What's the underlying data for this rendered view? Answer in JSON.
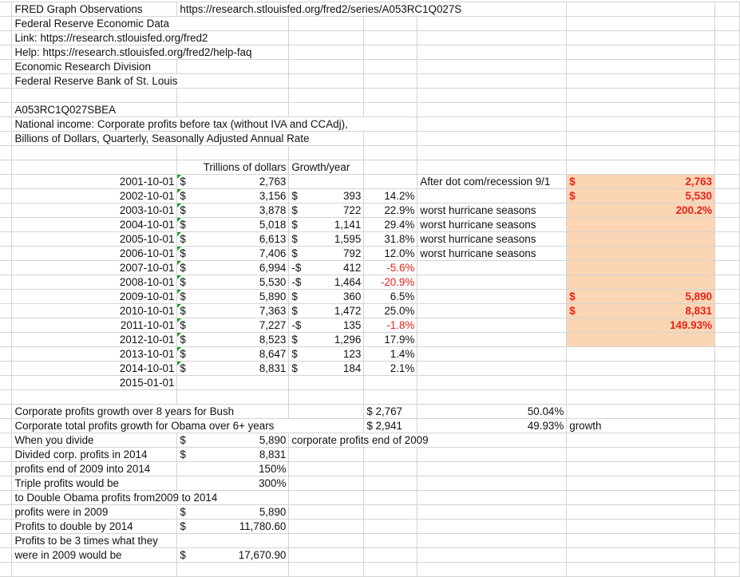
{
  "header": {
    "title": "FRED Graph Observations",
    "series_url": "https://research.stlouisfed.org/fred2/series/A053RC1Q027S",
    "source": "Federal Reserve Economic Data",
    "link": "Link: https://research.stlouisfed.org/fred2",
    "help": "Help: https://research.stlouisfed.org/fred2/help-faq",
    "division": "Economic Research Division",
    "bank": "Federal Reserve Bank of St. Louis",
    "series_id": "A053RC1Q027SBEA",
    "description": "National income: Corporate profits before tax (without IVA and CCAdj),",
    "units": "Billions of Dollars, Quarterly, Seasonally Adjusted Annual Rate"
  },
  "table": {
    "col_profit_header": "Trillions of dollars",
    "col_growth_header": "Growth/year",
    "currency": "$",
    "rows": [
      {
        "date": "2001-10-01",
        "profit": "2,763",
        "growth_sign": "",
        "growth": "",
        "pct": "",
        "note": "After dot com/recession 9/1"
      },
      {
        "date": "2002-10-01",
        "profit": "3,156",
        "growth_sign": "$",
        "growth": "393",
        "pct": "14.2%",
        "note": ""
      },
      {
        "date": "2003-10-01",
        "profit": "3,878",
        "growth_sign": "$",
        "growth": "722",
        "pct": "22.9%",
        "note": "worst hurricane seasons"
      },
      {
        "date": "2004-10-01",
        "profit": "5,018",
        "growth_sign": "$",
        "growth": "1,141",
        "pct": "29.4%",
        "note": "worst hurricane seasons"
      },
      {
        "date": "2005-10-01",
        "profit": "6,613",
        "growth_sign": "$",
        "growth": "1,595",
        "pct": "31.8%",
        "note": "worst hurricane seasons"
      },
      {
        "date": "2006-10-01",
        "profit": "7,406",
        "growth_sign": "$",
        "growth": "792",
        "pct": "12.0%",
        "note": "worst hurricane seasons"
      },
      {
        "date": "2007-10-01",
        "profit": "6,994",
        "growth_sign": "-$",
        "growth": "412",
        "pct": "-5.6%",
        "note": ""
      },
      {
        "date": "2008-10-01",
        "profit": "5,530",
        "growth_sign": "-$",
        "growth": "1,464",
        "pct": "-20.9%",
        "note": ""
      },
      {
        "date": "2009-10-01",
        "profit": "5,890",
        "growth_sign": "$",
        "growth": "360",
        "pct": "6.5%",
        "note": ""
      },
      {
        "date": "2010-10-01",
        "profit": "7,363",
        "growth_sign": "$",
        "growth": "1,472",
        "pct": "25.0%",
        "note": ""
      },
      {
        "date": "2011-10-01",
        "profit": "7,227",
        "growth_sign": "-$",
        "growth": "135",
        "pct": "-1.8%",
        "note": ""
      },
      {
        "date": "2012-10-01",
        "profit": "8,523",
        "growth_sign": "$",
        "growth": "1,296",
        "pct": "17.9%",
        "note": ""
      },
      {
        "date": "2013-10-01",
        "profit": "8,647",
        "growth_sign": "$",
        "growth": "123",
        "pct": "1.4%",
        "note": ""
      },
      {
        "date": "2014-10-01",
        "profit": "8,831",
        "growth_sign": "$",
        "growth": "184",
        "pct": "2.1%",
        "note": ""
      }
    ],
    "last_date": "2015-01-01"
  },
  "side_box": {
    "fill_color": "#fcd5b4",
    "text_color": "#e8221b",
    "bush_start": "2,763",
    "bush_end": "5,530",
    "bush_ratio": "200.2%",
    "obama_start": "5,890",
    "obama_end": "8,831",
    "obama_ratio": "149.93%"
  },
  "summary": {
    "bush_label": "Corporate profits growth over 8 years for Bush",
    "bush_value": "$ 2,767",
    "bush_pct": "50.04%",
    "obama_label": "Corporate total  profits  growth for Obama over 6+ years",
    "obama_value": "$ 2,941",
    "obama_pct": "49.93%",
    "obama_note": "growth",
    "divide_label": "When you divide",
    "divide_value": "5,890",
    "divide_note": "corporate profits end of 2009",
    "divided_label": "Divided corp. profits in 2014",
    "divided_value": "8,831",
    "ratio_label": "profits end of 2009 into 2014",
    "ratio_value": "150%",
    "triple_label": "Triple profits would be",
    "triple_value": "300%",
    "double_heading": "to Double Obama profits from2009 to 2014",
    "p2009_label": "profits were in 2009",
    "p2009_value": "5,890",
    "double_label": "Profits to double by 2014",
    "double_value": "11,780.60",
    "three_label_1": "Profits to be 3 times what they",
    "three_label_2": "were in 2009 would be",
    "three_value": "17,670.90"
  }
}
